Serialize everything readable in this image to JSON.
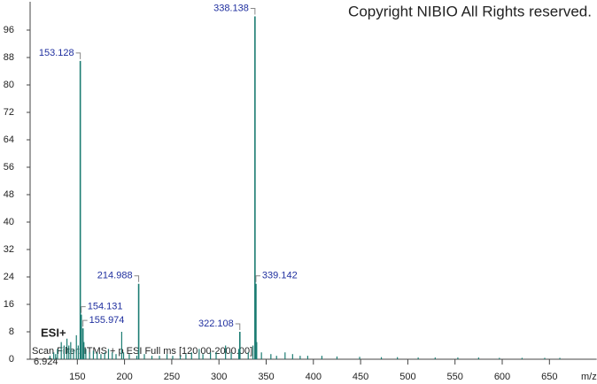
{
  "chart_data": {
    "type": "stem",
    "copyright": "Copyright NIBIO All Rights reserved.",
    "ionization": "ESI+",
    "scan_filter": "Scan Filter: ITMS + p ESI Full ms [120.00-2000.00]",
    "retention_time": "6.924",
    "x_label": "m/z",
    "color": "#1b7c72",
    "label_color": "#1f2f9f",
    "xlim": [
      100,
      700
    ],
    "ylim": [
      0,
      100
    ],
    "xticks": [
      150,
      200,
      250,
      300,
      350,
      400,
      450,
      500,
      550,
      600,
      650
    ],
    "yticks": [
      0,
      8,
      16,
      24,
      32,
      40,
      48,
      56,
      64,
      72,
      80,
      88,
      96
    ],
    "annotated_peaks": [
      {
        "x": 338.138,
        "y": 100
      },
      {
        "x": 153.128,
        "y": 87
      },
      {
        "x": 214.988,
        "y": 22
      },
      {
        "x": 339.142,
        "y": 22
      },
      {
        "x": 154.131,
        "y": 13
      },
      {
        "x": 155.974,
        "y": 9
      },
      {
        "x": 322.108,
        "y": 8
      }
    ],
    "x": [
      121,
      125,
      127,
      129,
      133,
      136,
      139,
      141,
      143,
      146,
      149,
      151,
      157,
      159,
      163,
      167,
      171,
      175,
      179,
      183,
      187,
      191,
      197,
      199,
      205,
      213,
      221,
      229,
      237,
      245,
      251,
      259,
      265,
      271,
      279,
      283,
      291,
      297,
      307,
      313,
      321,
      331,
      336,
      340,
      345,
      355,
      361,
      370,
      378,
      386,
      394,
      409,
      425,
      449,
      472,
      489,
      511,
      529,
      553,
      575,
      597,
      621,
      645,
      661
    ],
    "values": [
      1,
      2,
      1.5,
      3,
      5,
      4,
      6,
      4,
      5,
      3,
      7,
      4,
      5,
      3,
      2,
      2.5,
      2,
      1.5,
      2,
      3,
      2,
      1.5,
      8,
      2,
      1.5,
      1,
      1.5,
      1,
      1,
      1.5,
      1,
      1,
      1.5,
      2,
      3,
      1.5,
      2,
      2,
      4,
      2,
      3,
      2,
      4,
      5,
      2,
      1.5,
      1,
      2,
      1.5,
      1,
      1,
      1,
      0.8,
      0.7,
      0.6,
      0.6,
      0.5,
      0.5,
      0.5,
      0.5,
      0.4,
      0.4,
      0.4,
      0.4
    ]
  }
}
